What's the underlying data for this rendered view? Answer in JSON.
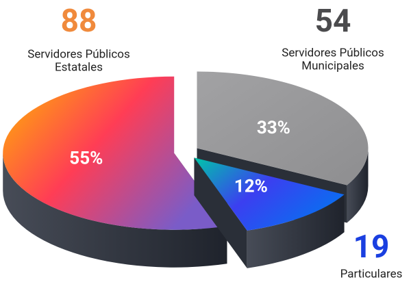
{
  "chart_data": {
    "type": "pie",
    "labels": [
      [
        "Servidores Públicos",
        "Estatales"
      ],
      [
        "Servidores Públicos",
        "Municipales"
      ],
      [
        "Particulares"
      ]
    ],
    "counts": [
      88,
      54,
      19
    ],
    "values": [
      55,
      33,
      12
    ],
    "value_labels": [
      "55%",
      "33%",
      "12%"
    ],
    "colors": [
      "#f08a3c",
      "#4b4b4d",
      "#1a3fe0"
    ]
  }
}
